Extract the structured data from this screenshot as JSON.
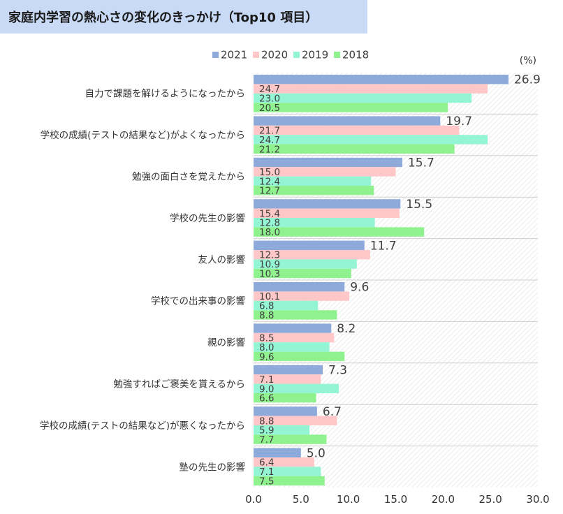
{
  "chart_data": {
    "type": "bar",
    "orientation": "horizontal",
    "title": "家庭内学習の熱心さの変化のきっかけ（Top10 項目）",
    "unit_label": "(%)",
    "categories": [
      "自力で課題を解けるようになったから",
      "学校の成績(テストの結果など)がよくなったから",
      "勉強の面白さを覚えたから",
      "学校の先生の影響",
      "友人の影響",
      "学校での出来事の影響",
      "親の影響",
      "勉強すればご褒美を貰えるから",
      "学校の成績(テストの結果など)が悪くなったから",
      "塾の先生の影響"
    ],
    "series": [
      {
        "name": "2021",
        "color": "#8eaadb",
        "values": [
          26.9,
          19.7,
          15.7,
          15.5,
          11.7,
          9.6,
          8.2,
          7.3,
          6.7,
          5.0
        ]
      },
      {
        "name": "2020",
        "color": "#ffc7c7",
        "values": [
          24.7,
          21.7,
          15.0,
          15.4,
          12.3,
          10.1,
          8.5,
          7.1,
          8.8,
          6.4
        ]
      },
      {
        "name": "2019",
        "color": "#93f5d4",
        "values": [
          23.0,
          24.7,
          12.4,
          12.8,
          10.9,
          6.8,
          8.0,
          9.0,
          5.9,
          7.1
        ]
      },
      {
        "name": "2018",
        "color": "#8ff28f",
        "values": [
          20.5,
          21.2,
          12.7,
          18.0,
          10.3,
          8.8,
          9.6,
          6.6,
          7.7,
          7.5
        ]
      }
    ],
    "x_ticks": [
      "0.0",
      "5.0",
      "10.0",
      "15.0",
      "20.0",
      "25.0",
      "30.0"
    ],
    "xlim": [
      0,
      30
    ],
    "legend_position": "top",
    "grid": false
  }
}
